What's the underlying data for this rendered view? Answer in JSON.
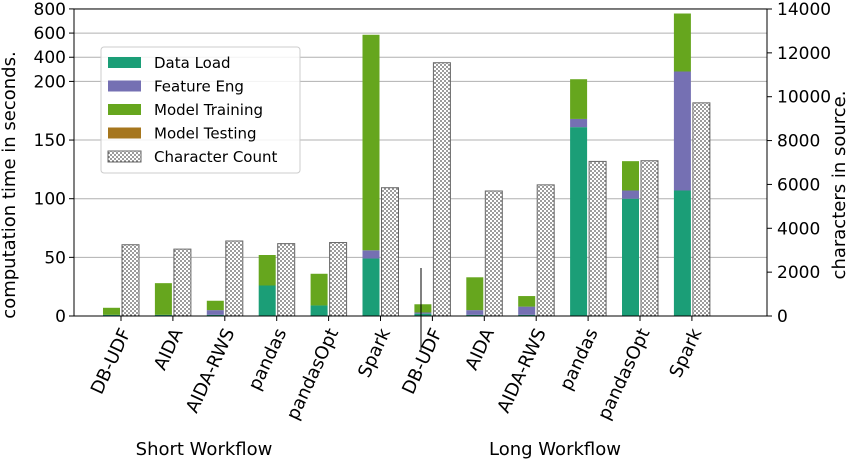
{
  "chart_data": {
    "type": "bar",
    "ylabel": "computation time in seconds.",
    "y2label": "characters in source.",
    "y_scale": "broken: linear 0–200 (ticks 0, 50, 100, 150, 200), compressed 200–800 (ticks 200, 400, 600, 800)",
    "ylim": [
      0,
      800
    ],
    "y_ticks": [
      "0",
      "50",
      "100",
      "150",
      "200",
      "400",
      "600",
      "800"
    ],
    "y2lim": [
      0,
      14000
    ],
    "y2_ticks": [
      "0",
      "2000",
      "4000",
      "6000",
      "8000",
      "10000",
      "12000",
      "14000"
    ],
    "grid": "horizontal",
    "legend_position": "upper-left",
    "groups": [
      {
        "label": "Short Workflow",
        "categories": [
          "DB-UDF",
          "AIDA",
          "AIDA-RWS",
          "pandas",
          "pandasOpt",
          "Spark"
        ]
      },
      {
        "label": "Long Workflow",
        "categories": [
          "DB-UDF",
          "AIDA",
          "AIDA-RWS",
          "pandas",
          "pandasOpt",
          "Spark"
        ]
      }
    ],
    "categories": [
      "DB-UDF",
      "AIDA",
      "AIDA-RWS",
      "pandas",
      "pandasOpt",
      "Spark",
      "DB-UDF",
      "AIDA",
      "AIDA-RWS",
      "pandas",
      "pandasOpt",
      "Spark"
    ],
    "series": [
      {
        "name": "Data Load",
        "color": "#1b9e77",
        "axis": "left",
        "values": [
          1,
          1,
          1,
          26,
          9,
          49,
          2,
          1,
          1,
          161,
          100,
          107
        ]
      },
      {
        "name": "Feature Eng",
        "color": "#7570b3",
        "axis": "left",
        "values": [
          0,
          0,
          4,
          0,
          0,
          7,
          1,
          4,
          7,
          7,
          7,
          175
        ]
      },
      {
        "name": "Model Training",
        "color": "#66a61e",
        "axis": "left",
        "values": [
          6,
          27,
          8,
          26,
          27,
          530,
          7,
          28,
          9,
          50,
          25,
          480
        ]
      },
      {
        "name": "Model Testing",
        "color": "#a6761d",
        "axis": "left",
        "values": [
          0,
          0,
          0,
          0,
          0,
          0,
          0,
          0,
          0,
          0,
          0,
          0
        ]
      },
      {
        "name": "Character Count",
        "color": "#888888",
        "axis": "right",
        "hatch": "dots",
        "values": [
          3250,
          3050,
          3420,
          3300,
          3350,
          5850,
          11550,
          5700,
          5980,
          7050,
          7080,
          9720
        ]
      }
    ]
  }
}
